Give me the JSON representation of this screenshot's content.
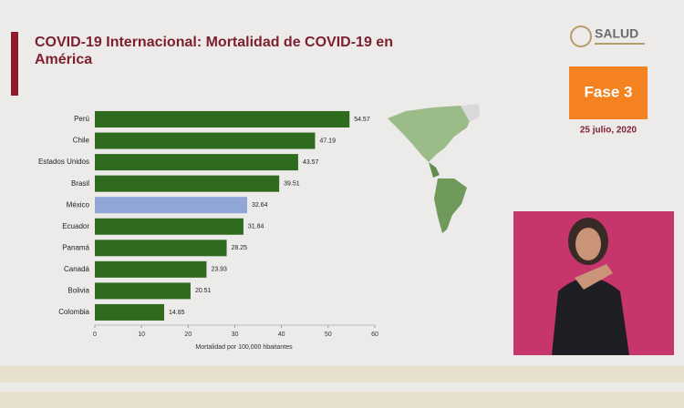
{
  "chart_data": {
    "type": "hbar",
    "title": "COVID-19 Internacional: Mortalidad de COVID-19 en América",
    "categories": [
      "Perú",
      "Chile",
      "Estados Unidos",
      "Brasil",
      "México",
      "Ecuador",
      "Panamá",
      "Canadá",
      "Bolivia",
      "Colombia"
    ],
    "values": [
      54.57,
      47.19,
      43.57,
      39.51,
      32.64,
      31.84,
      28.25,
      23.93,
      20.51,
      14.85
    ],
    "colors": [
      "#2f6b1e",
      "#2f6b1e",
      "#2f6b1e",
      "#2f6b1e",
      "#8fa6d6",
      "#2f6b1e",
      "#2f6b1e",
      "#2f6b1e",
      "#2f6b1e",
      "#2f6b1e"
    ],
    "xlabel": "Mortalidad por 100,000 hbaitantes",
    "xlim": [
      0,
      60
    ],
    "xticks": [
      0,
      10,
      20,
      30,
      40,
      50,
      60
    ]
  },
  "logo": "SALUD",
  "phase": "Fase 3",
  "date": "25 julio, 2020"
}
